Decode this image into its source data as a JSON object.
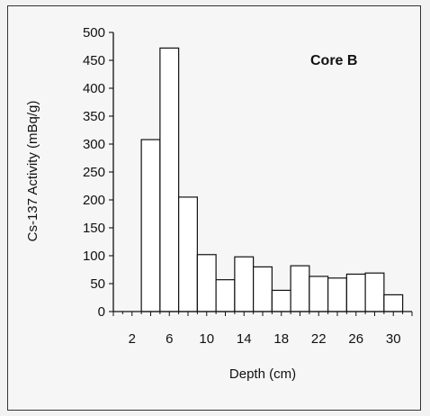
{
  "chart_data": {
    "type": "bar",
    "title": "",
    "annotation": "Core B",
    "xlabel": "Depth (cm)",
    "ylabel": "Cs-137 Activity (mBq/g)",
    "xlim": [
      0,
      32
    ],
    "ylim": [
      0,
      500
    ],
    "x_ticks": [
      2,
      6,
      10,
      14,
      18,
      22,
      26,
      30
    ],
    "y_ticks": [
      0,
      50,
      100,
      150,
      200,
      250,
      300,
      350,
      400,
      450,
      500
    ],
    "bin_width": 2,
    "bars": [
      {
        "x_start": 3,
        "x_end": 5,
        "value": 308
      },
      {
        "x_start": 5,
        "x_end": 7,
        "value": 472
      },
      {
        "x_start": 7,
        "x_end": 9,
        "value": 205
      },
      {
        "x_start": 9,
        "x_end": 11,
        "value": 102
      },
      {
        "x_start": 11,
        "x_end": 13,
        "value": 57
      },
      {
        "x_start": 13,
        "x_end": 15,
        "value": 98
      },
      {
        "x_start": 15,
        "x_end": 17,
        "value": 80
      },
      {
        "x_start": 17,
        "x_end": 19,
        "value": 38
      },
      {
        "x_start": 19,
        "x_end": 21,
        "value": 82
      },
      {
        "x_start": 21,
        "x_end": 23,
        "value": 63
      },
      {
        "x_start": 23,
        "x_end": 25,
        "value": 60
      },
      {
        "x_start": 25,
        "x_end": 27,
        "value": 67
      },
      {
        "x_start": 27,
        "x_end": 29,
        "value": 69
      },
      {
        "x_start": 29,
        "x_end": 31,
        "value": 30
      }
    ],
    "grid": false,
    "legend": "none",
    "colors": {
      "bar_fill": "#ffffff",
      "bar_stroke": "#111111",
      "axis": "#111111"
    }
  }
}
